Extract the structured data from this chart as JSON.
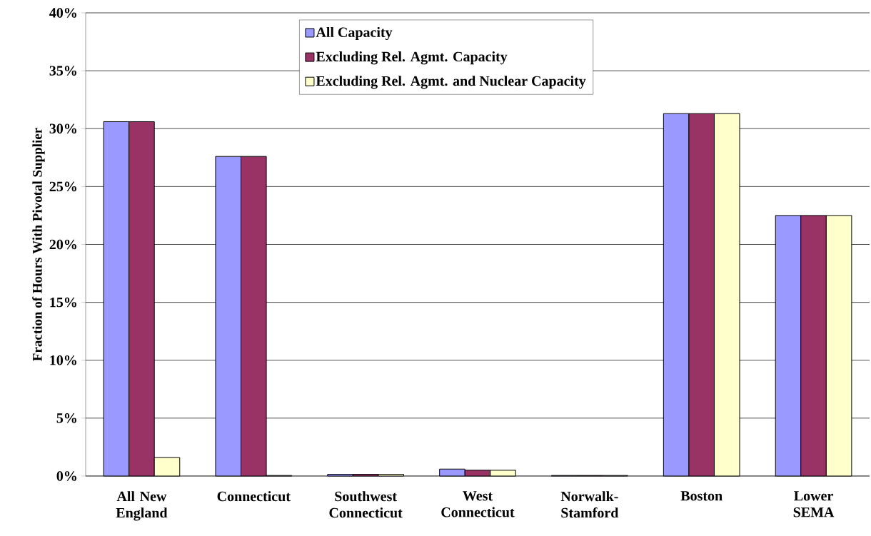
{
  "chart_data": {
    "type": "bar",
    "ylabel": "Fraction of Hours With Pivotal Supplier",
    "categories": [
      "All New England",
      "Connecticut",
      "Southwest Connecticut",
      "West Connecticut",
      "Norwalk-Stamford",
      "Boston",
      "Lower SEMA"
    ],
    "series": [
      {
        "name": "All Capacity",
        "color": "#9999ff",
        "values": [
          30.6,
          27.6,
          0.15,
          0.6,
          0.05,
          31.3,
          22.5
        ]
      },
      {
        "name": "Excluding Rel. Agmt. Capacity",
        "color": "#993366",
        "values": [
          30.6,
          27.6,
          0.15,
          0.5,
          0.05,
          31.3,
          22.5
        ]
      },
      {
        "name": "Excluding Rel. Agmt. and Nuclear Capacity",
        "color": "#ffffcc",
        "values": [
          1.6,
          0.05,
          0.15,
          0.5,
          0.05,
          31.3,
          22.5
        ]
      }
    ],
    "ylim": [
      0,
      40
    ],
    "yticks": [
      {
        "value": 0,
        "label": "0%"
      },
      {
        "value": 5,
        "label": "5%"
      },
      {
        "value": 10,
        "label": "10%"
      },
      {
        "value": 15,
        "label": "15%"
      },
      {
        "value": 20,
        "label": "20%"
      },
      {
        "value": 25,
        "label": "25%"
      },
      {
        "value": 30,
        "label": "30%"
      },
      {
        "value": 35,
        "label": "35%"
      },
      {
        "value": 40,
        "label": "40%"
      }
    ],
    "grid": "y",
    "legend": "top"
  }
}
